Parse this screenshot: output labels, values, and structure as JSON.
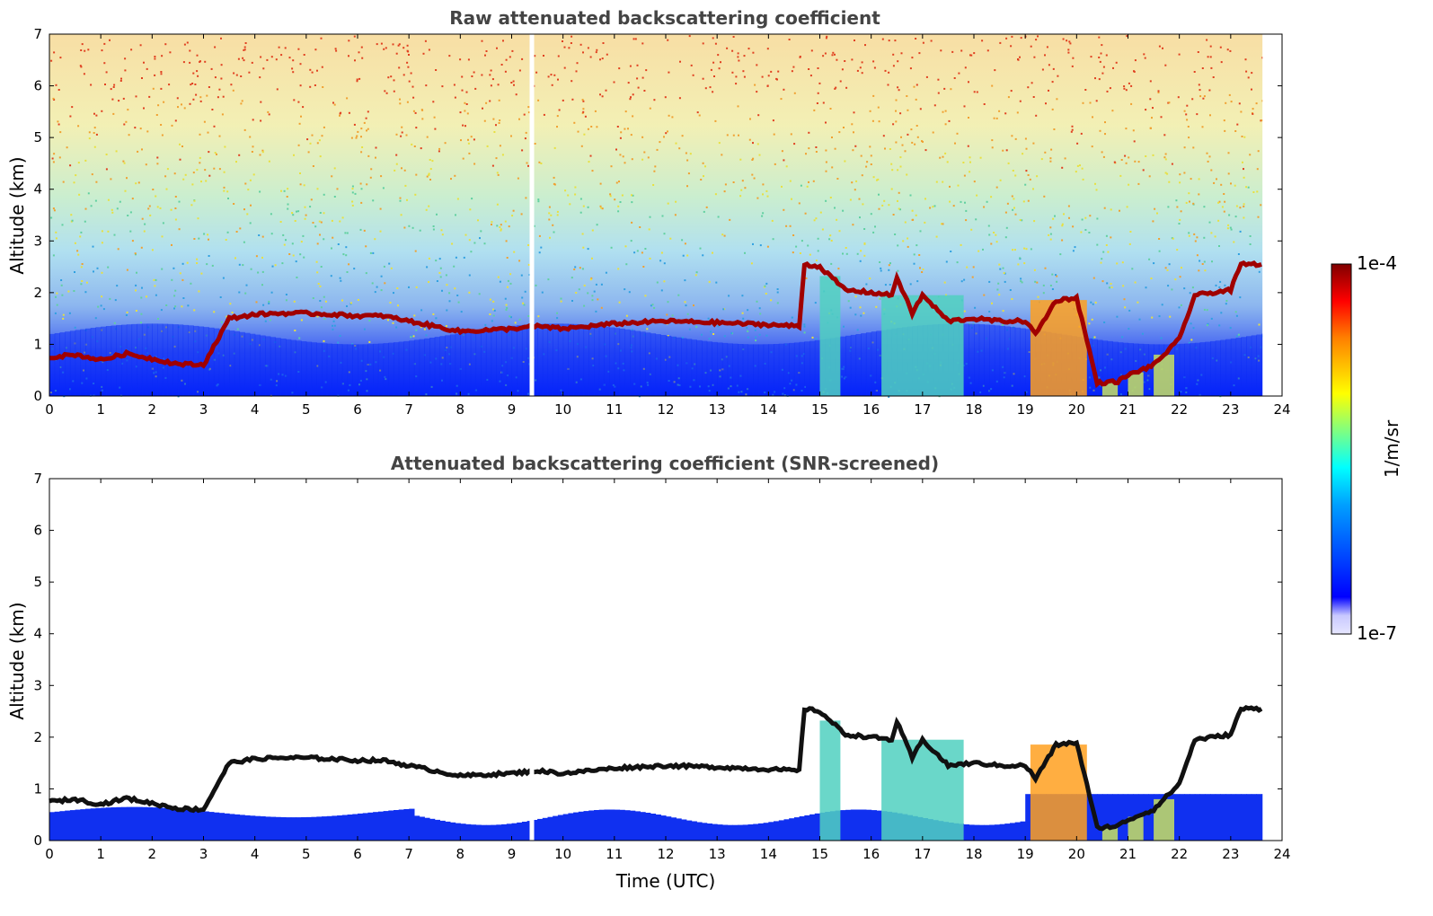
{
  "chart_data": [
    {
      "type": "heatmap",
      "title": "Raw attenuated backscattering coefficient",
      "xlabel": "",
      "ylabel": "Altitude (km)",
      "xlim": [
        0,
        24
      ],
      "ylim": [
        0,
        7
      ],
      "xticks": [
        0,
        1,
        2,
        3,
        4,
        5,
        6,
        7,
        8,
        9,
        10,
        11,
        12,
        13,
        14,
        15,
        16,
        17,
        18,
        19,
        20,
        21,
        22,
        23,
        24
      ],
      "yticks": [
        0,
        1,
        2,
        3,
        4,
        5,
        6,
        7
      ],
      "colorscale": "jet",
      "color_range": [
        "1e-7",
        "1e-4"
      ],
      "data_gap_hours": [
        9.35,
        9.42
      ],
      "data_end_hour": 23.62,
      "cloud_layer_base_km": [
        [
          0.0,
          0.75
        ],
        [
          0.5,
          0.8
        ],
        [
          1.0,
          0.7
        ],
        [
          1.5,
          0.82
        ],
        [
          2.0,
          0.72
        ],
        [
          2.5,
          0.62
        ],
        [
          3.0,
          0.6
        ],
        [
          3.5,
          1.5
        ],
        [
          4.0,
          1.58
        ],
        [
          4.5,
          1.6
        ],
        [
          5.0,
          1.6
        ],
        [
          5.5,
          1.58
        ],
        [
          6.0,
          1.55
        ],
        [
          6.5,
          1.55
        ],
        [
          7.0,
          1.45
        ],
        [
          8.0,
          1.25
        ],
        [
          9.0,
          1.3
        ],
        [
          9.5,
          1.35
        ],
        [
          10.0,
          1.3
        ],
        [
          11.0,
          1.4
        ],
        [
          12.0,
          1.45
        ],
        [
          13.0,
          1.42
        ],
        [
          14.0,
          1.38
        ],
        [
          14.6,
          1.35
        ],
        [
          14.7,
          2.55
        ],
        [
          15.0,
          2.5
        ],
        [
          15.5,
          2.05
        ],
        [
          16.0,
          2.0
        ],
        [
          16.4,
          1.95
        ],
        [
          16.5,
          2.3
        ],
        [
          16.8,
          1.6
        ],
        [
          17.0,
          1.95
        ],
        [
          17.5,
          1.45
        ],
        [
          18.0,
          1.5
        ],
        [
          18.5,
          1.45
        ],
        [
          19.0,
          1.45
        ],
        [
          19.2,
          1.2
        ],
        [
          19.6,
          1.85
        ],
        [
          20.0,
          1.9
        ],
        [
          20.4,
          0.25
        ],
        [
          20.8,
          0.28
        ],
        [
          21.0,
          0.4
        ],
        [
          21.5,
          0.6
        ],
        [
          22.0,
          1.1
        ],
        [
          22.3,
          1.95
        ],
        [
          23.0,
          2.05
        ],
        [
          23.2,
          2.55
        ]
      ],
      "precipitation_fall_hours": [
        [
          15.0,
          15.4
        ],
        [
          16.2,
          17.8
        ],
        [
          19.1,
          20.2
        ],
        [
          20.5,
          20.8
        ],
        [
          21.0,
          21.3
        ],
        [
          21.5,
          21.9
        ]
      ]
    },
    {
      "type": "heatmap",
      "title": "Attenuated backscattering coefficient (SNR-screened)",
      "xlabel": "Time (UTC)",
      "ylabel": "Altitude (km)",
      "xlim": [
        0,
        24
      ],
      "ylim": [
        0,
        7
      ],
      "xticks": [
        0,
        1,
        2,
        3,
        4,
        5,
        6,
        7,
        8,
        9,
        10,
        11,
        12,
        13,
        14,
        15,
        16,
        17,
        18,
        19,
        20,
        21,
        22,
        23,
        24
      ],
      "yticks": [
        0,
        1,
        2,
        3,
        4,
        5,
        6,
        7
      ],
      "colorscale": "jet",
      "color_range": [
        "1e-7",
        "1e-4"
      ],
      "screened": true
    }
  ],
  "colorbar": {
    "label": "1/m/sr",
    "max_label": "1e-4",
    "min_label": "1e-7",
    "colors": [
      "#e6e6ff",
      "#c8c8ff",
      "#0000ff",
      "#00a0ff",
      "#00ffff",
      "#80ff80",
      "#ffff00",
      "#ff8000",
      "#ff0000",
      "#800000"
    ]
  }
}
